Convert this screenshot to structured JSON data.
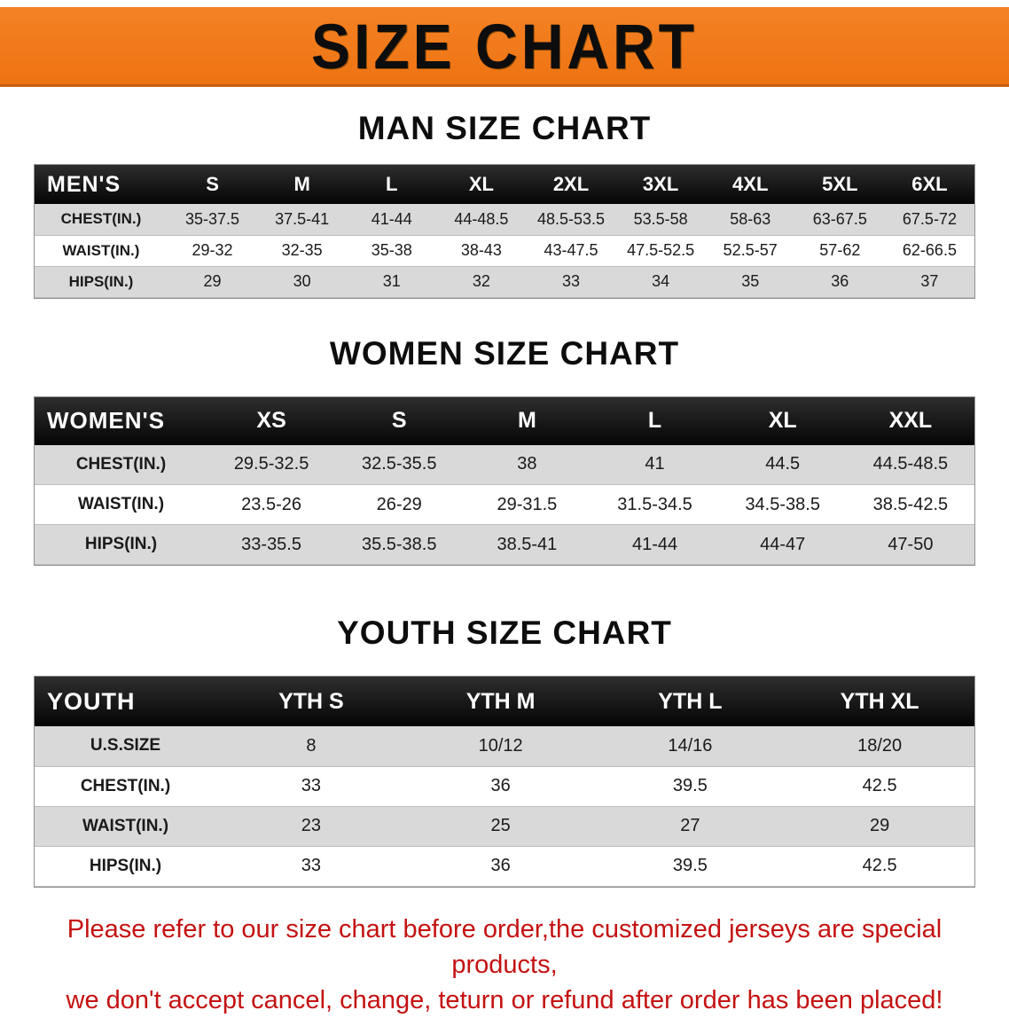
{
  "banner": {
    "title": "SIZE CHART",
    "bg_color": "#ee7312",
    "text_color": "#0d0d0d"
  },
  "colors": {
    "header_bg": "#0a0a0a",
    "header_text": "#ffffff",
    "row_alt": "#d9d9d9",
    "notice_text": "#c41212"
  },
  "sections": [
    {
      "heading": "MAN SIZE CHART",
      "table": {
        "header": [
          "MEN'S",
          "S",
          "M",
          "L",
          "XL",
          "2XL",
          "3XL",
          "4XL",
          "5XL",
          "6XL"
        ],
        "rows": [
          [
            "CHEST(IN.)",
            "35-37.5",
            "37.5-41",
            "41-44",
            "44-48.5",
            "48.5-53.5",
            "53.5-58",
            "58-63",
            "63-67.5",
            "67.5-72"
          ],
          [
            "WAIST(IN.)",
            "29-32",
            "32-35",
            "35-38",
            "38-43",
            "43-47.5",
            "47.5-52.5",
            "52.5-57",
            "57-62",
            "62-66.5"
          ],
          [
            "HIPS(IN.)",
            "29",
            "30",
            "31",
            "32",
            "33",
            "34",
            "35",
            "36",
            "37"
          ]
        ]
      }
    },
    {
      "heading": "WOMEN SIZE CHART",
      "table": {
        "header": [
          "WOMEN'S",
          "XS",
          "S",
          "M",
          "L",
          "XL",
          "XXL"
        ],
        "rows": [
          [
            "CHEST(IN.)",
            "29.5-32.5",
            "32.5-35.5",
            "38",
            "41",
            "44.5",
            "44.5-48.5"
          ],
          [
            "WAIST(IN.)",
            "23.5-26",
            "26-29",
            "29-31.5",
            "31.5-34.5",
            "34.5-38.5",
            "38.5-42.5"
          ],
          [
            "HIPS(IN.)",
            "33-35.5",
            "35.5-38.5",
            "38.5-41",
            "41-44",
            "44-47",
            "47-50"
          ]
        ]
      }
    },
    {
      "heading": "YOUTH SIZE CHART",
      "table": {
        "header": [
          "YOUTH",
          "YTH S",
          "YTH M",
          "YTH L",
          "YTH XL"
        ],
        "rows": [
          [
            "U.S.SIZE",
            "8",
            "10/12",
            "14/16",
            "18/20"
          ],
          [
            "CHEST(IN.)",
            "33",
            "36",
            "39.5",
            "42.5"
          ],
          [
            "WAIST(IN.)",
            "23",
            "25",
            "27",
            "29"
          ],
          [
            "HIPS(IN.)",
            "33",
            "36",
            "39.5",
            "42.5"
          ]
        ]
      }
    }
  ],
  "notice": {
    "line1": "Please refer to our size chart before order,the customized jerseys are special products,",
    "line2": "we don't accept cancel, change, teturn or refund after order has been placed!"
  }
}
